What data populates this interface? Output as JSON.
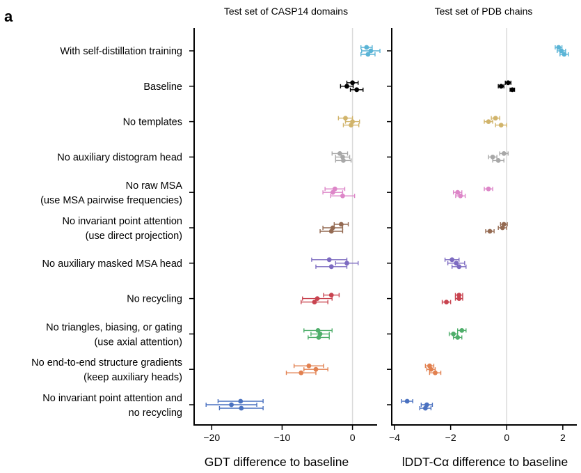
{
  "chart_data": {
    "type": "scatter",
    "panel_letter": "a",
    "colors": [
      "#5ab4d6",
      "#000000",
      "#d1b46b",
      "#a8a8a8",
      "#dd86c8",
      "#946a52",
      "#7d6bc1",
      "#c8434f",
      "#4fae6b",
      "#e28150",
      "#4a71c0"
    ],
    "categories": [
      [
        "With self-distillation training"
      ],
      [
        "Baseline"
      ],
      [
        "No templates"
      ],
      [
        "No auxiliary distogram head"
      ],
      [
        "No raw MSA",
        "(use MSA pairwise frequencies)"
      ],
      [
        "No invariant point attention",
        "(use direct projection)"
      ],
      [
        "No auxiliary masked MSA head"
      ],
      [
        "No recycling"
      ],
      [
        "No triangles, biasing, or gating",
        "(use axial attention)"
      ],
      [
        "No end-to-end structure gradients",
        "(keep auxiliary heads)"
      ],
      [
        "No invariant point attention and",
        "no recycling"
      ]
    ],
    "panels": [
      {
        "title": "Test set of CASP14 domains",
        "xlabel": "GDT difference to baseline",
        "xlim": [
          -22.5,
          3.5
        ],
        "xticks": [
          -20,
          -10,
          0
        ],
        "xticklabels": [
          "−20",
          "−10",
          "0"
        ],
        "series": [
          [
            [
              2.0,
              0.8
            ],
            [
              2.6,
              1.3
            ],
            [
              2.2,
              1.0
            ]
          ],
          [
            [
              0.0,
              0.8
            ],
            [
              -0.8,
              0.9
            ],
            [
              0.6,
              0.9
            ]
          ],
          [
            [
              -1.0,
              1.0
            ],
            [
              0.0,
              1.0
            ],
            [
              -0.2,
              1.1
            ]
          ],
          [
            [
              -1.8,
              1.1
            ],
            [
              -1.4,
              1.0
            ],
            [
              -1.3,
              1.1
            ]
          ],
          [
            [
              -2.5,
              1.4
            ],
            [
              -2.8,
              1.4
            ],
            [
              -1.4,
              1.7
            ]
          ],
          [
            [
              -1.6,
              1.0
            ],
            [
              -2.8,
              1.4
            ],
            [
              -3.0,
              1.6
            ]
          ],
          [
            [
              -3.3,
              2.5
            ],
            [
              -0.8,
              1.6
            ],
            [
              -3.0,
              2.2
            ]
          ],
          [
            [
              -3.0,
              1.1
            ],
            [
              -5.0,
              2.1
            ],
            [
              -5.4,
              1.9
            ]
          ],
          [
            [
              -4.9,
              2.0
            ],
            [
              -4.6,
              1.3
            ],
            [
              -4.8,
              1.5
            ]
          ],
          [
            [
              -6.2,
              2.1
            ],
            [
              -5.2,
              1.7
            ],
            [
              -7.3,
              2.1
            ]
          ],
          [
            [
              -15.9,
              3.2
            ],
            [
              -17.2,
              3.6
            ],
            [
              -15.8,
              3.1
            ]
          ]
        ]
      },
      {
        "title": "Test set of PDB chains",
        "xlabel": "lDDT-Cα difference to baseline",
        "xlim": [
          -4.1,
          2.5
        ],
        "xticks": [
          -4,
          -2,
          0,
          2
        ],
        "xticklabels": [
          "−4",
          "−2",
          "0",
          "2"
        ],
        "series": [
          [
            [
              1.85,
              0.12
            ],
            [
              1.95,
              0.15
            ],
            [
              2.05,
              0.15
            ]
          ],
          [
            [
              0.05,
              0.1
            ],
            [
              -0.2,
              0.1
            ],
            [
              0.2,
              0.08
            ]
          ],
          [
            [
              -0.4,
              0.15
            ],
            [
              -0.65,
              0.15
            ],
            [
              -0.2,
              0.2
            ]
          ],
          [
            [
              -0.1,
              0.15
            ],
            [
              -0.5,
              0.15
            ],
            [
              -0.3,
              0.2
            ]
          ],
          [
            [
              -0.65,
              0.15
            ],
            [
              -1.75,
              0.15
            ],
            [
              -1.65,
              0.17
            ]
          ],
          [
            [
              -0.1,
              0.12
            ],
            [
              -0.15,
              0.15
            ],
            [
              -0.6,
              0.15
            ]
          ],
          [
            [
              -1.95,
              0.25
            ],
            [
              -1.8,
              0.3
            ],
            [
              -1.7,
              0.25
            ]
          ],
          [
            [
              -1.7,
              0.13
            ],
            [
              -1.7,
              0.13
            ],
            [
              -2.15,
              0.15
            ]
          ],
          [
            [
              -1.6,
              0.15
            ],
            [
              -1.9,
              0.15
            ],
            [
              -1.75,
              0.15
            ]
          ],
          [
            [
              -2.75,
              0.15
            ],
            [
              -2.7,
              0.15
            ],
            [
              -2.55,
              0.2
            ]
          ],
          [
            [
              -3.55,
              0.2
            ],
            [
              -2.85,
              0.2
            ],
            [
              -2.9,
              0.2
            ]
          ]
        ]
      }
    ]
  }
}
